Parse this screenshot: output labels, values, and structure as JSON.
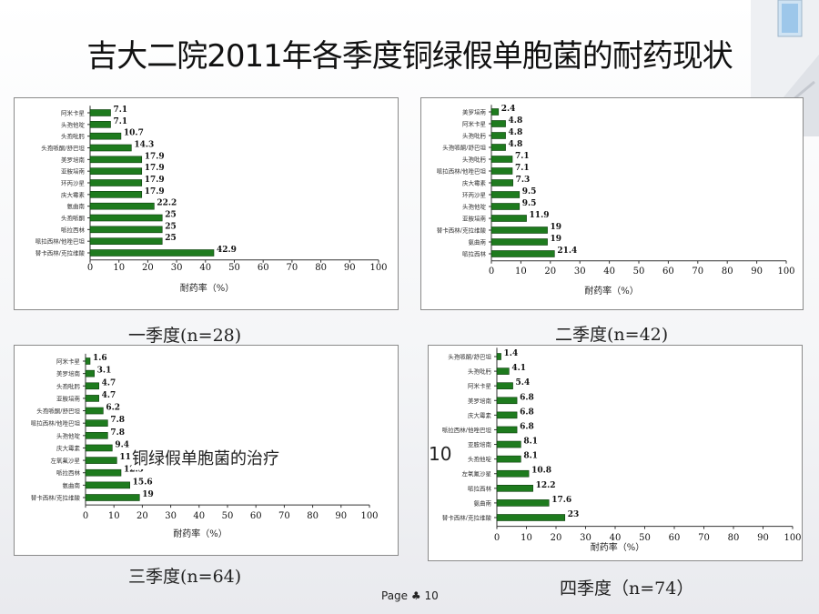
{
  "title": "吉大二院2011年各季度铜绿假单胞菌的耐药现状",
  "overlay_text": "铜绿假单胞菌的治疗",
  "overlay_number": "10",
  "page_label": "Page ♣ 10",
  "chart_data": [
    {
      "type": "bar",
      "orientation": "horizontal",
      "caption": "一季度(n=28)",
      "xlabel": "耐药率（%）",
      "xlim": [
        0,
        100
      ],
      "xticks": [
        0,
        10,
        20,
        30,
        40,
        50,
        60,
        70,
        80,
        90,
        100
      ],
      "bar_color": "#1e7b1e",
      "categories": [
        "阿米卡星",
        "头孢他啶",
        "头孢吡肟",
        "头孢哌酮/舒巴坦",
        "美罗培南",
        "亚胺培南",
        "环丙沙星",
        "庆大霉素",
        "氨曲南",
        "头孢哌酮",
        "哌拉西林",
        "哌拉西林/他唑巴坦",
        "替卡西林/克拉维酸"
      ],
      "values": [
        7.1,
        7.1,
        10.7,
        14.3,
        17.9,
        17.9,
        17.9,
        17.9,
        22.2,
        25,
        25,
        25,
        42.9
      ]
    },
    {
      "type": "bar",
      "orientation": "horizontal",
      "caption": "二季度(n=42)",
      "xlabel": "耐药率（%）",
      "xlim": [
        0,
        100
      ],
      "xticks": [
        0,
        10,
        20,
        30,
        40,
        50,
        60,
        70,
        80,
        90,
        100
      ],
      "bar_color": "#1e7b1e",
      "categories": [
        "美罗培南",
        "阿米卡星",
        "头孢吡肟",
        "头孢哌酮/舒巴坦",
        "头孢吡肟",
        "哌拉西林/他唑巴坦",
        "庆大霉素",
        "环丙沙星",
        "头孢他啶",
        "亚胺培南",
        "替卡西林/克拉维酸",
        "氨曲南",
        "哌拉西林"
      ],
      "values": [
        2.4,
        4.8,
        4.8,
        4.8,
        7.1,
        7.1,
        7.3,
        9.5,
        9.5,
        11.9,
        19,
        19,
        21.4
      ]
    },
    {
      "type": "bar",
      "orientation": "horizontal",
      "caption": "三季度(n=64)",
      "xlabel": "耐药率（%）",
      "xlim": [
        0,
        100
      ],
      "xticks": [
        0,
        10,
        20,
        30,
        40,
        50,
        60,
        70,
        80,
        90,
        100
      ],
      "bar_color": "#1e7b1e",
      "categories": [
        "阿米卡星",
        "美罗培南",
        "头孢吡肟",
        "亚胺培南",
        "头孢哌酮/舒巴坦",
        "哌拉西林/他唑巴坦",
        "头孢他啶",
        "庆大霉素",
        "左氧氟沙星",
        "哌拉西林",
        "氨曲南",
        "替卡西林/克拉维酸"
      ],
      "values": [
        1.6,
        3.1,
        4.7,
        4.7,
        6.2,
        7.8,
        7.8,
        9.4,
        11,
        12.5,
        15.6,
        19
      ]
    },
    {
      "type": "bar",
      "orientation": "horizontal",
      "caption": "四季度（n=74）",
      "xlabel": "耐药率（%）",
      "xlim": [
        0,
        100
      ],
      "xticks": [
        0,
        10,
        20,
        30,
        40,
        50,
        60,
        70,
        80,
        90,
        100
      ],
      "bar_color": "#1e7b1e",
      "categories": [
        "头孢哌酮/舒巴坦",
        "头孢吡肟",
        "阿米卡星",
        "美罗培南",
        "庆大霉素",
        "哌拉西林/他唑巴坦",
        "亚胺培南",
        "头孢他啶",
        "左氧氟沙星",
        "哌拉西林",
        "氨曲南",
        "替卡西林/克拉维酸"
      ],
      "values": [
        1.4,
        4.1,
        5.4,
        6.8,
        6.8,
        6.8,
        8.1,
        8.1,
        10.8,
        12.2,
        17.6,
        23
      ]
    }
  ]
}
